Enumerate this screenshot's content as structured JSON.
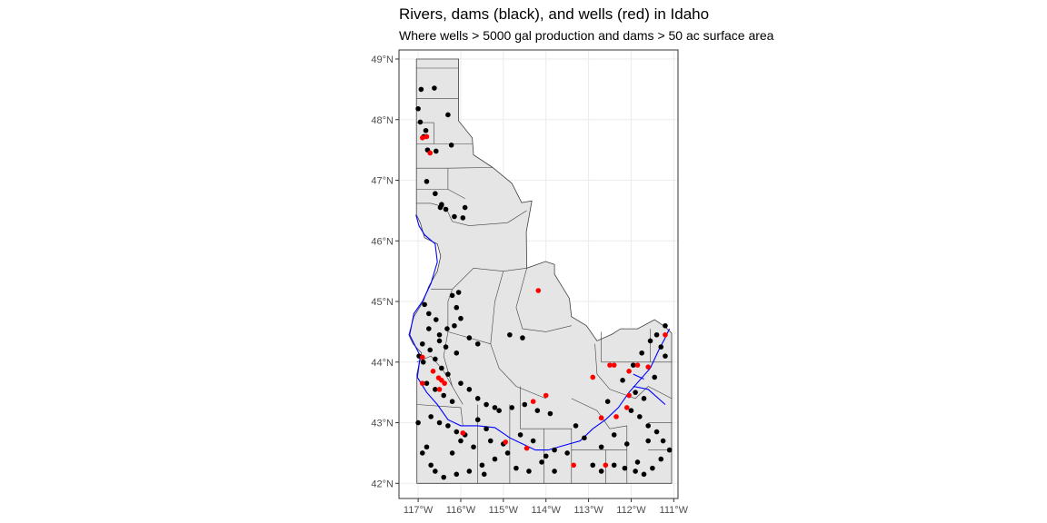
{
  "title": "Rivers, dams (black), and wells (red) in Idaho",
  "subtitle": "Where wells > 5000 gal production and dams > 50 ac surface area",
  "colors": {
    "dam": "#000000",
    "well": "#ff0000",
    "river": "#0000ff",
    "land": "#e5e5e5",
    "border": "#404040",
    "grid": "#ebebeb",
    "panel_border": "#333333"
  },
  "axes": {
    "lon_range": [
      -117.45,
      -110.9
    ],
    "lat_range": [
      41.75,
      49.15
    ],
    "x_ticks": [
      {
        "value": -117,
        "label": "117°W"
      },
      {
        "value": -116,
        "label": "116°W"
      },
      {
        "value": -115,
        "label": "115°W"
      },
      {
        "value": -114,
        "label": "114°W"
      },
      {
        "value": -113,
        "label": "113°W"
      },
      {
        "value": -112,
        "label": "112°W"
      },
      {
        "value": -111,
        "label": "111°W"
      }
    ],
    "y_ticks": [
      {
        "value": 42,
        "label": "42°N"
      },
      {
        "value": 43,
        "label": "43°N"
      },
      {
        "value": 44,
        "label": "44°N"
      },
      {
        "value": 45,
        "label": "45°N"
      },
      {
        "value": 46,
        "label": "46°N"
      },
      {
        "value": 47,
        "label": "47°N"
      },
      {
        "value": 48,
        "label": "48°N"
      },
      {
        "value": 49,
        "label": "49°N"
      }
    ]
  },
  "state_outline": [
    [
      -117.04,
      49.0
    ],
    [
      -116.05,
      49.0
    ],
    [
      -116.05,
      47.98
    ],
    [
      -115.73,
      47.7
    ],
    [
      -115.7,
      47.42
    ],
    [
      -115.25,
      47.21
    ],
    [
      -114.8,
      46.95
    ],
    [
      -114.57,
      46.63
    ],
    [
      -114.33,
      46.66
    ],
    [
      -114.46,
      46.15
    ],
    [
      -114.45,
      45.55
    ],
    [
      -114.01,
      45.66
    ],
    [
      -113.8,
      45.61
    ],
    [
      -113.8,
      45.45
    ],
    [
      -113.45,
      45.05
    ],
    [
      -113.4,
      44.75
    ],
    [
      -113.05,
      44.6
    ],
    [
      -112.8,
      44.35
    ],
    [
      -112.45,
      44.46
    ],
    [
      -112.25,
      44.55
    ],
    [
      -111.85,
      44.55
    ],
    [
      -111.45,
      44.7
    ],
    [
      -111.2,
      44.58
    ],
    [
      -111.05,
      44.48
    ],
    [
      -111.05,
      42.0
    ],
    [
      -117.03,
      42.0
    ],
    [
      -117.03,
      43.8
    ],
    [
      -116.92,
      44.15
    ],
    [
      -117.12,
      44.3
    ],
    [
      -117.22,
      44.45
    ],
    [
      -117.1,
      44.75
    ],
    [
      -116.88,
      45.0
    ],
    [
      -116.75,
      45.25
    ],
    [
      -116.55,
      45.5
    ],
    [
      -116.47,
      45.75
    ],
    [
      -116.55,
      45.95
    ],
    [
      -116.85,
      46.05
    ],
    [
      -116.95,
      46.3
    ],
    [
      -117.04,
      46.43
    ],
    [
      -117.04,
      49.0
    ]
  ],
  "county_lines": [
    [
      [
        -117.04,
        48.85
      ],
      [
        -116.05,
        48.85
      ]
    ],
    [
      [
        -117.04,
        48.35
      ],
      [
        -116.05,
        48.35
      ]
    ],
    [
      [
        -117.04,
        47.95
      ],
      [
        -116.63,
        47.95
      ]
    ],
    [
      [
        -116.63,
        47.95
      ],
      [
        -116.63,
        47.6
      ]
    ],
    [
      [
        -117.04,
        47.6
      ],
      [
        -115.73,
        47.6
      ]
    ],
    [
      [
        -117.04,
        47.2
      ],
      [
        -116.3,
        47.2
      ],
      [
        -115.25,
        47.21
      ]
    ],
    [
      [
        -116.3,
        47.2
      ],
      [
        -116.3,
        46.85
      ]
    ],
    [
      [
        -117.04,
        46.85
      ],
      [
        -116.3,
        46.85
      ],
      [
        -115.9,
        46.7
      ]
    ],
    [
      [
        -117.04,
        46.62
      ],
      [
        -116.7,
        46.62
      ],
      [
        -116.35,
        46.55
      ]
    ],
    [
      [
        -116.35,
        46.55
      ],
      [
        -116.2,
        46.32
      ],
      [
        -115.8,
        46.25
      ]
    ],
    [
      [
        -115.8,
        46.25
      ],
      [
        -114.9,
        46.3
      ],
      [
        -114.45,
        46.5
      ]
    ],
    [
      [
        -116.7,
        45.2
      ],
      [
        -116.2,
        45.2
      ],
      [
        -116.3,
        45.0
      ]
    ],
    [
      [
        -116.2,
        45.2
      ],
      [
        -115.7,
        45.55
      ],
      [
        -115.0,
        45.5
      ],
      [
        -114.45,
        45.55
      ]
    ],
    [
      [
        -116.3,
        45.0
      ],
      [
        -116.3,
        44.5
      ],
      [
        -115.3,
        44.3
      ]
    ],
    [
      [
        -115.0,
        45.5
      ],
      [
        -115.2,
        45.0
      ],
      [
        -115.3,
        44.3
      ]
    ],
    [
      [
        -114.45,
        45.55
      ],
      [
        -114.7,
        44.9
      ],
      [
        -114.55,
        44.55
      ],
      [
        -114.0,
        44.5
      ],
      [
        -113.4,
        44.6
      ]
    ],
    [
      [
        -117.03,
        44.0
      ],
      [
        -116.7,
        44.1
      ],
      [
        -116.4,
        43.85
      ],
      [
        -116.2,
        43.6
      ]
    ],
    [
      [
        -116.3,
        44.5
      ],
      [
        -116.4,
        44.1
      ],
      [
        -116.2,
        43.6
      ],
      [
        -115.95,
        43.3
      ]
    ],
    [
      [
        -115.3,
        44.3
      ],
      [
        -115.1,
        43.9
      ],
      [
        -114.7,
        43.6
      ],
      [
        -114.0,
        43.4
      ]
    ],
    [
      [
        -117.03,
        43.3
      ],
      [
        -116.0,
        43.25
      ],
      [
        -115.95,
        42.95
      ],
      [
        -115.6,
        42.95
      ]
    ],
    [
      [
        -115.6,
        43.3
      ],
      [
        -115.6,
        42.0
      ]
    ],
    [
      [
        -114.85,
        43.3
      ],
      [
        -114.85,
        42.0
      ]
    ],
    [
      [
        -114.6,
        43.6
      ],
      [
        -114.6,
        42.9
      ],
      [
        -114.05,
        42.9
      ],
      [
        -114.05,
        42.0
      ]
    ],
    [
      [
        -114.05,
        42.9
      ],
      [
        -113.4,
        42.9
      ],
      [
        -113.4,
        42.0
      ]
    ],
    [
      [
        -113.4,
        43.4
      ],
      [
        -112.8,
        43.2
      ],
      [
        -112.5,
        42.9
      ],
      [
        -112.1,
        42.95
      ]
    ],
    [
      [
        -112.85,
        44.3
      ],
      [
        -112.8,
        43.8
      ],
      [
        -112.5,
        43.55
      ],
      [
        -111.9,
        43.4
      ],
      [
        -111.6,
        43.6
      ],
      [
        -111.05,
        43.4
      ]
    ],
    [
      [
        -112.7,
        44.5
      ],
      [
        -112.7,
        44.0
      ],
      [
        -111.55,
        44.0
      ],
      [
        -111.05,
        44.0
      ]
    ],
    [
      [
        -111.55,
        44.55
      ],
      [
        -111.55,
        44.0
      ]
    ],
    [
      [
        -112.1,
        42.95
      ],
      [
        -112.1,
        42.0
      ]
    ],
    [
      [
        -111.6,
        43.0
      ],
      [
        -111.05,
        43.0
      ]
    ],
    [
      [
        -111.6,
        42.55
      ],
      [
        -111.05,
        42.55
      ]
    ],
    [
      [
        -112.6,
        42.55
      ],
      [
        -112.1,
        42.55
      ]
    ],
    [
      [
        -113.4,
        42.55
      ],
      [
        -112.6,
        42.55
      ],
      [
        -112.6,
        42.0
      ]
    ]
  ],
  "rivers": [
    [
      [
        -117.05,
        46.43
      ],
      [
        -116.98,
        46.25
      ],
      [
        -116.85,
        46.1
      ],
      [
        -116.6,
        45.95
      ],
      [
        -116.55,
        45.65
      ],
      [
        -116.7,
        45.3
      ],
      [
        -116.9,
        45.0
      ],
      [
        -117.1,
        44.8
      ],
      [
        -117.2,
        44.45
      ],
      [
        -116.95,
        44.1
      ],
      [
        -117.02,
        43.75
      ],
      [
        -116.8,
        43.5
      ],
      [
        -116.55,
        43.3
      ],
      [
        -116.3,
        43.05
      ],
      [
        -116.0,
        42.95
      ],
      [
        -115.6,
        42.95
      ],
      [
        -115.2,
        42.92
      ],
      [
        -114.85,
        42.75
      ],
      [
        -114.55,
        42.65
      ],
      [
        -114.25,
        42.55
      ],
      [
        -113.95,
        42.55
      ],
      [
        -113.6,
        42.62
      ],
      [
        -113.2,
        42.7
      ],
      [
        -112.9,
        42.9
      ],
      [
        -112.6,
        43.05
      ],
      [
        -112.3,
        43.25
      ],
      [
        -112.05,
        43.5
      ],
      [
        -111.8,
        43.7
      ],
      [
        -111.55,
        43.9
      ],
      [
        -111.35,
        44.2
      ],
      [
        -111.2,
        44.4
      ],
      [
        -111.1,
        44.55
      ]
    ],
    [
      [
        -111.95,
        43.6
      ],
      [
        -111.6,
        43.55
      ],
      [
        -111.2,
        43.3
      ]
    ],
    [
      [
        -111.95,
        43.8
      ],
      [
        -111.7,
        43.72
      ]
    ]
  ],
  "dams": [
    [
      -116.93,
      48.5
    ],
    [
      -116.62,
      48.52
    ],
    [
      -116.3,
      48.08
    ],
    [
      -117.0,
      48.18
    ],
    [
      -116.95,
      47.96
    ],
    [
      -116.82,
      47.82
    ],
    [
      -116.78,
      47.5
    ],
    [
      -116.87,
      47.72
    ],
    [
      -116.58,
      47.48
    ],
    [
      -116.22,
      47.58
    ],
    [
      -116.8,
      46.98
    ],
    [
      -116.6,
      46.78
    ],
    [
      -116.48,
      46.55
    ],
    [
      -116.15,
      46.4
    ],
    [
      -115.95,
      46.38
    ],
    [
      -116.45,
      46.6
    ],
    [
      -116.35,
      46.52
    ],
    [
      -115.9,
      46.55
    ],
    [
      -116.2,
      45.1
    ],
    [
      -116.05,
      45.15
    ],
    [
      -116.1,
      44.9
    ],
    [
      -116.0,
      44.72
    ],
    [
      -116.75,
      44.8
    ],
    [
      -116.85,
      44.95
    ],
    [
      -116.58,
      44.7
    ],
    [
      -116.75,
      44.55
    ],
    [
      -116.5,
      44.45
    ],
    [
      -116.32,
      44.55
    ],
    [
      -116.15,
      44.6
    ],
    [
      -115.8,
      44.4
    ],
    [
      -115.6,
      44.3
    ],
    [
      -116.9,
      44.3
    ],
    [
      -116.72,
      44.2
    ],
    [
      -116.5,
      44.35
    ],
    [
      -116.35,
      44.25
    ],
    [
      -116.1,
      44.15
    ],
    [
      -114.85,
      44.45
    ],
    [
      -114.55,
      44.4
    ],
    [
      -116.98,
      44.1
    ],
    [
      -116.88,
      44.0
    ],
    [
      -116.6,
      44.05
    ],
    [
      -116.45,
      43.9
    ],
    [
      -116.3,
      43.8
    ],
    [
      -116.0,
      43.65
    ],
    [
      -115.8,
      43.55
    ],
    [
      -115.6,
      43.4
    ],
    [
      -115.4,
      43.3
    ],
    [
      -115.2,
      43.25
    ],
    [
      -116.8,
      43.65
    ],
    [
      -116.6,
      43.55
    ],
    [
      -116.4,
      43.45
    ],
    [
      -116.2,
      43.35
    ],
    [
      -117.0,
      43.0
    ],
    [
      -116.7,
      43.1
    ],
    [
      -116.5,
      43.0
    ],
    [
      -116.3,
      42.95
    ],
    [
      -116.1,
      42.85
    ],
    [
      -115.9,
      42.8
    ],
    [
      -115.6,
      43.05
    ],
    [
      -115.4,
      42.9
    ],
    [
      -115.1,
      43.2
    ],
    [
      -114.8,
      43.25
    ],
    [
      -114.5,
      43.3
    ],
    [
      -114.2,
      43.2
    ],
    [
      -113.9,
      43.15
    ],
    [
      -114.6,
      42.8
    ],
    [
      -114.3,
      42.7
    ],
    [
      -114.9,
      42.5
    ],
    [
      -115.2,
      42.4
    ],
    [
      -115.5,
      42.3
    ],
    [
      -115.8,
      42.2
    ],
    [
      -116.1,
      42.15
    ],
    [
      -116.4,
      42.1
    ],
    [
      -116.7,
      42.3
    ],
    [
      -116.9,
      42.5
    ],
    [
      -116.2,
      42.5
    ],
    [
      -115.7,
      42.6
    ],
    [
      -114.7,
      42.25
    ],
    [
      -114.4,
      42.2
    ],
    [
      -114.1,
      42.35
    ],
    [
      -113.8,
      42.55
    ],
    [
      -113.5,
      42.5
    ],
    [
      -112.9,
      42.3
    ],
    [
      -112.7,
      42.2
    ],
    [
      -112.4,
      42.3
    ],
    [
      -111.9,
      42.2
    ],
    [
      -111.7,
      42.15
    ],
    [
      -111.5,
      42.25
    ],
    [
      -111.3,
      42.4
    ],
    [
      -111.1,
      42.55
    ],
    [
      -111.25,
      42.7
    ],
    [
      -111.4,
      42.85
    ],
    [
      -111.6,
      42.95
    ],
    [
      -111.8,
      43.1
    ],
    [
      -112.0,
      43.2
    ],
    [
      -111.9,
      43.5
    ],
    [
      -111.45,
      43.75
    ],
    [
      -111.2,
      44.1
    ],
    [
      -111.3,
      44.25
    ],
    [
      -111.55,
      44.35
    ],
    [
      -111.75,
      44.15
    ],
    [
      -111.95,
      43.95
    ],
    [
      -112.2,
      43.7
    ],
    [
      -111.4,
      44.45
    ],
    [
      -111.2,
      44.6
    ],
    [
      -111.7,
      43.4
    ],
    [
      -112.1,
      42.65
    ],
    [
      -112.4,
      42.8
    ],
    [
      -112.7,
      42.6
    ],
    [
      -113.1,
      42.75
    ],
    [
      -113.3,
      42.95
    ],
    [
      -112.55,
      43.35
    ],
    [
      -111.6,
      42.7
    ],
    [
      -111.85,
      42.35
    ],
    [
      -112.15,
      42.25
    ],
    [
      -113.8,
      42.2
    ],
    [
      -114.0,
      42.45
    ],
    [
      -115.0,
      42.65
    ],
    [
      -115.3,
      42.7
    ],
    [
      -115.45,
      42.15
    ],
    [
      -116.6,
      42.2
    ],
    [
      -116.8,
      42.6
    ],
    [
      -116.0,
      42.7
    ]
  ],
  "wells": [
    [
      -116.9,
      47.7
    ],
    [
      -116.8,
      47.72
    ],
    [
      -116.72,
      47.45
    ],
    [
      -114.18,
      45.18
    ],
    [
      -116.9,
      44.08
    ],
    [
      -116.52,
      43.74
    ],
    [
      -116.45,
      43.7
    ],
    [
      -116.5,
      43.55
    ],
    [
      -116.38,
      43.65
    ],
    [
      -116.65,
      43.85
    ],
    [
      -116.9,
      43.65
    ],
    [
      -115.95,
      42.83
    ],
    [
      -114.3,
      43.35
    ],
    [
      -114.0,
      43.45
    ],
    [
      -114.95,
      42.68
    ],
    [
      -114.45,
      42.58
    ],
    [
      -113.35,
      42.3
    ],
    [
      -112.9,
      43.75
    ],
    [
      -112.4,
      43.95
    ],
    [
      -112.05,
      43.85
    ],
    [
      -111.85,
      43.95
    ],
    [
      -111.6,
      43.92
    ],
    [
      -112.05,
      43.45
    ],
    [
      -112.1,
      43.25
    ],
    [
      -112.35,
      43.1
    ],
    [
      -112.7,
      43.08
    ],
    [
      -112.5,
      43.95
    ],
    [
      -111.2,
      44.45
    ],
    [
      -112.6,
      42.3
    ]
  ]
}
